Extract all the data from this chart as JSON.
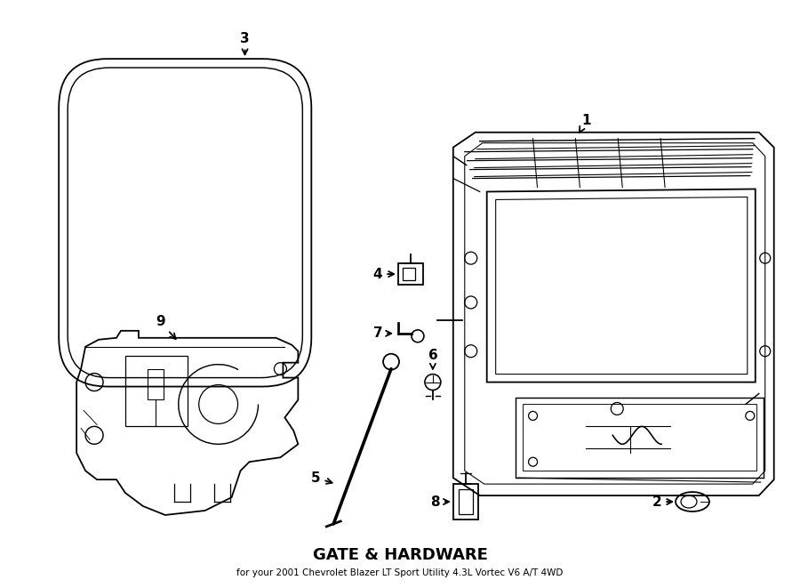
{
  "title": "GATE & HARDWARE",
  "subtitle": "for your 2001 Chevrolet Blazer LT Sport Utility 4.3L Vortec V6 A/T 4WD",
  "bg_color": "#ffffff",
  "line_color": "#000000",
  "fig_width": 9.0,
  "fig_height": 6.61,
  "dpi": 100
}
